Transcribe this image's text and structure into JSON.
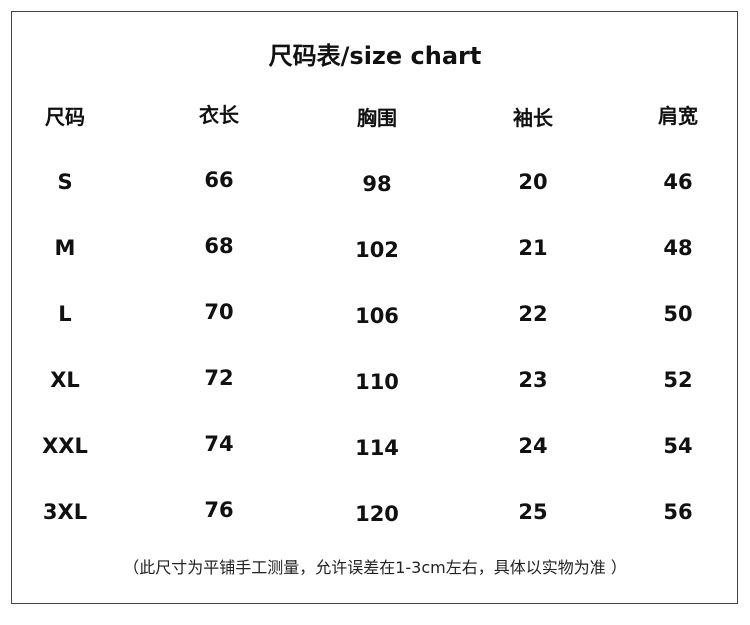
{
  "title": "尺码表/size chart",
  "headers": [
    "尺码",
    "衣长",
    "胸围",
    "袖长",
    "肩宽"
  ],
  "rows": [
    [
      "S",
      "66",
      "98",
      "20",
      "46"
    ],
    [
      "M",
      "68",
      "102",
      "21",
      "48"
    ],
    [
      "L",
      "70",
      "106",
      "22",
      "50"
    ],
    [
      "XL",
      "72",
      "110",
      "23",
      "52"
    ],
    [
      "XXL",
      "74",
      "114",
      "24",
      "54"
    ],
    [
      "3XL",
      "76",
      "120",
      "25",
      "56"
    ]
  ],
  "note": "（此尺寸为平铺手工测量，允许误差在1-3cm左右，具体以实物为准 ）"
}
